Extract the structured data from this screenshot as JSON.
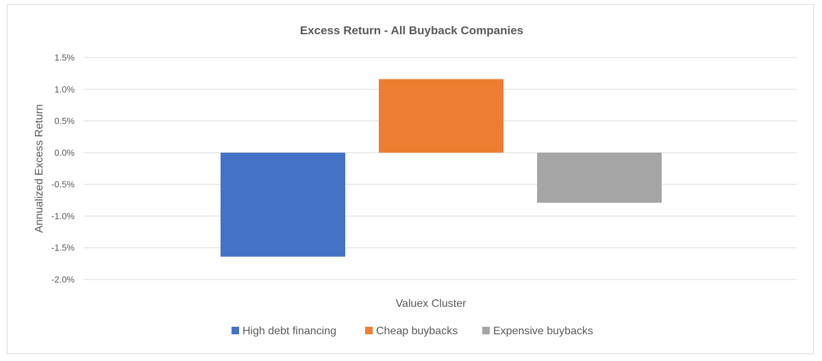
{
  "chart_data": {
    "type": "bar",
    "title": "Excess Return - All Buyback Companies",
    "xlabel": "Valuex Cluster",
    "ylabel": "Annualized Excess Return",
    "ylim": [
      -2.0,
      1.5
    ],
    "yticks": [
      "1.5%",
      "1.0%",
      "0.5%",
      "0.0%",
      "-0.5%",
      "-1.0%",
      "-1.5%",
      "-2.0%"
    ],
    "ytick_values": [
      1.5,
      1.0,
      0.5,
      0.0,
      -0.5,
      -1.0,
      -1.5,
      -2.0
    ],
    "grid": true,
    "legend_position": "bottom",
    "series": [
      {
        "name": "High debt financing",
        "value": -1.64,
        "color": "#4472c4"
      },
      {
        "name": "Cheap buybacks",
        "value": 1.16,
        "color": "#ed7d31"
      },
      {
        "name": "Expensive buybacks",
        "value": -0.79,
        "color": "#a5a5a5"
      }
    ]
  }
}
